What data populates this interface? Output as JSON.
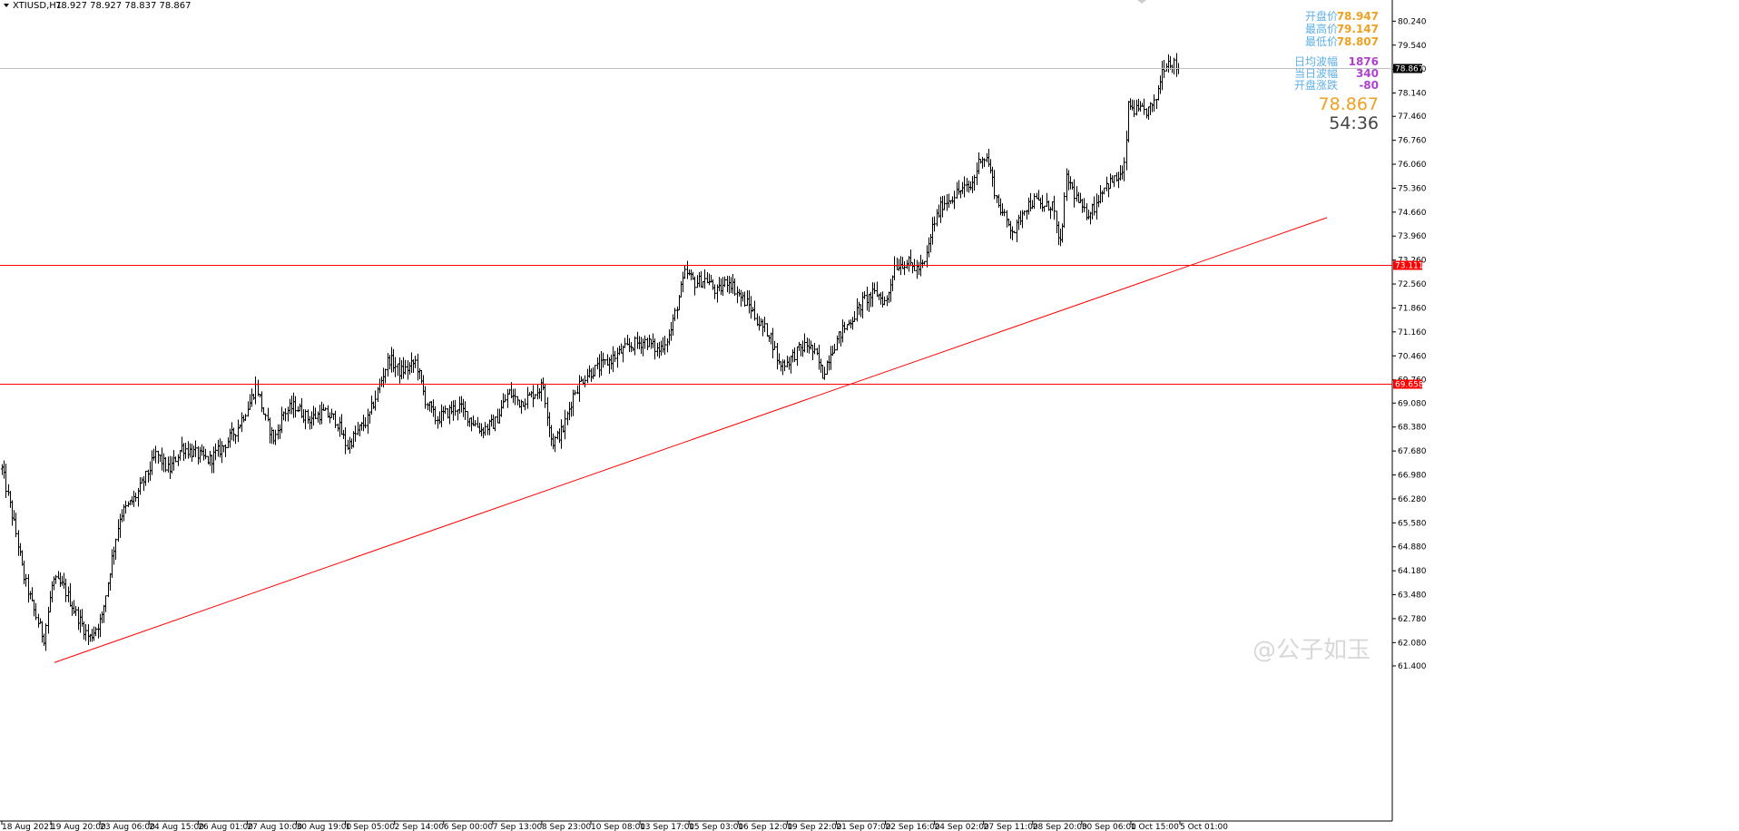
{
  "header": {
    "symbol": "XTIUSD,H1",
    "ohlc": "78.927 78.927 78.837 78.867"
  },
  "info_panel": {
    "rows": [
      {
        "label": "开盘价",
        "value": "78.947",
        "color": "#f0a020"
      },
      {
        "label": "最高价",
        "value": "79.147",
        "color": "#f0a020"
      },
      {
        "label": "最低价",
        "value": "78.807",
        "color": "#f0a020"
      },
      {
        "label": "日均波幅",
        "value": "1876",
        "color": "#b040d0"
      },
      {
        "label": "当日波幅",
        "value": "340",
        "color": "#b040d0"
      },
      {
        "label": "开盘涨跌",
        "value": "-80",
        "color": "#b040d0"
      }
    ],
    "current_price": "78.867",
    "countdown": "54:36"
  },
  "watermark": "@公子如玉",
  "colors": {
    "background": "#ffffff",
    "bars": "#000000",
    "support_lines": "#ff0000",
    "price_line": "#c0c0c0",
    "price_tag_bg": "#000000",
    "level_tag_bg": "#ff0000"
  },
  "chart_data": {
    "type": "ohlc",
    "timeframe": "H1",
    "ylim": [
      61.4,
      80.7
    ],
    "y_ticks": [
      "80.240",
      "79.540",
      "78.840",
      "78.140",
      "77.460",
      "76.760",
      "76.060",
      "75.360",
      "74.660",
      "73.960",
      "73.260",
      "72.560",
      "71.860",
      "71.160",
      "70.460",
      "69.760",
      "69.080",
      "68.380",
      "67.680",
      "66.980",
      "66.280",
      "65.580",
      "64.880",
      "64.180",
      "63.480",
      "62.780",
      "62.080",
      "61.400"
    ],
    "x_tick_labels": [
      "18 Aug 2021",
      "19 Aug 20:00",
      "23 Aug 06:00",
      "24 Aug 15:00",
      "26 Aug 01:00",
      "27 Aug 10:00",
      "30 Aug 19:00",
      "1 Sep 05:00",
      "2 Sep 14:00",
      "6 Sep 00:00",
      "7 Sep 13:00",
      "8 Sep 23:00",
      "10 Sep 08:00",
      "13 Sep 17:00",
      "15 Sep 03:00",
      "16 Sep 12:00",
      "19 Sep 22:00",
      "21 Sep 07:00",
      "22 Sep 16:00",
      "24 Sep 02:00",
      "27 Sep 11:00",
      "28 Sep 20:00",
      "30 Sep 06:00",
      "1 Oct 15:00",
      "5 Oct 01:00"
    ],
    "path_points": [
      [
        0,
        67.4
      ],
      [
        18,
        65.2
      ],
      [
        25,
        64.1
      ],
      [
        36,
        63.1
      ],
      [
        48,
        62.2
      ],
      [
        58,
        63.9
      ],
      [
        70,
        63.7
      ],
      [
        82,
        63.0
      ],
      [
        98,
        62.2
      ],
      [
        112,
        62.8
      ],
      [
        122,
        64.4
      ],
      [
        132,
        65.8
      ],
      [
        148,
        66.3
      ],
      [
        160,
        66.9
      ],
      [
        172,
        67.6
      ],
      [
        186,
        67.1
      ],
      [
        200,
        67.8
      ],
      [
        215,
        67.6
      ],
      [
        230,
        67.4
      ],
      [
        245,
        67.8
      ],
      [
        260,
        68.3
      ],
      [
        275,
        69.1
      ],
      [
        282,
        69.6
      ],
      [
        292,
        68.6
      ],
      [
        302,
        68.0
      ],
      [
        312,
        68.8
      ],
      [
        325,
        69.0
      ],
      [
        340,
        68.6
      ],
      [
        355,
        68.8
      ],
      [
        370,
        68.6
      ],
      [
        382,
        67.8
      ],
      [
        395,
        68.3
      ],
      [
        405,
        68.6
      ],
      [
        418,
        69.6
      ],
      [
        428,
        70.4
      ],
      [
        440,
        70.0
      ],
      [
        450,
        70.1
      ],
      [
        458,
        70.3
      ],
      [
        468,
        69.2
      ],
      [
        480,
        68.6
      ],
      [
        492,
        68.8
      ],
      [
        505,
        69.0
      ],
      [
        518,
        68.6
      ],
      [
        530,
        68.3
      ],
      [
        545,
        68.5
      ],
      [
        560,
        69.4
      ],
      [
        572,
        69.1
      ],
      [
        585,
        69.3
      ],
      [
        598,
        69.6
      ],
      [
        608,
        67.9
      ],
      [
        620,
        68.3
      ],
      [
        632,
        69.4
      ],
      [
        645,
        69.9
      ],
      [
        658,
        70.1
      ],
      [
        670,
        70.3
      ],
      [
        685,
        70.6
      ],
      [
        698,
        70.8
      ],
      [
        712,
        70.9
      ],
      [
        725,
        70.6
      ],
      [
        738,
        71.1
      ],
      [
        748,
        72.2
      ],
      [
        755,
        72.9
      ],
      [
        765,
        72.6
      ],
      [
        778,
        72.7
      ],
      [
        790,
        72.3
      ],
      [
        802,
        72.7
      ],
      [
        815,
        72.2
      ],
      [
        826,
        71.9
      ],
      [
        836,
        71.4
      ],
      [
        848,
        71.1
      ],
      [
        858,
        70.2
      ],
      [
        868,
        70.3
      ],
      [
        878,
        70.6
      ],
      [
        890,
        70.8
      ],
      [
        900,
        70.4
      ],
      [
        906,
        69.9
      ],
      [
        915,
        70.6
      ],
      [
        928,
        71.2
      ],
      [
        940,
        71.6
      ],
      [
        952,
        72.1
      ],
      [
        965,
        72.3
      ],
      [
        976,
        72.0
      ],
      [
        985,
        73.1
      ],
      [
        998,
        73.2
      ],
      [
        1010,
        73.0
      ],
      [
        1018,
        73.1
      ],
      [
        1028,
        74.3
      ],
      [
        1038,
        74.9
      ],
      [
        1048,
        75.1
      ],
      [
        1058,
        75.3
      ],
      [
        1070,
        75.4
      ],
      [
        1080,
        76.3
      ],
      [
        1088,
        76.2
      ],
      [
        1098,
        75.0
      ],
      [
        1108,
        74.4
      ],
      [
        1118,
        74.1
      ],
      [
        1128,
        74.8
      ],
      [
        1140,
        75.0
      ],
      [
        1150,
        74.8
      ],
      [
        1160,
        74.9
      ],
      [
        1167,
        73.5
      ],
      [
        1175,
        75.7
      ],
      [
        1185,
        75.1
      ],
      [
        1195,
        74.6
      ],
      [
        1205,
        74.8
      ],
      [
        1215,
        75.4
      ],
      [
        1228,
        75.6
      ],
      [
        1238,
        75.8
      ],
      [
        1243,
        77.8
      ],
      [
        1252,
        77.6
      ],
      [
        1262,
        77.6
      ],
      [
        1272,
        77.8
      ],
      [
        1280,
        78.8
      ],
      [
        1285,
        79.1
      ],
      [
        1292,
        79.0
      ],
      [
        1298,
        78.87
      ]
    ],
    "horizontal_levels": [
      {
        "value": 73.111,
        "label": "73.111"
      },
      {
        "value": 69.658,
        "label": "69.658"
      }
    ],
    "trendline": [
      [
        60,
        61.5
      ],
      [
        1462,
        74.5
      ]
    ],
    "last_price": {
      "value": 78.867,
      "label": "78.867"
    }
  }
}
